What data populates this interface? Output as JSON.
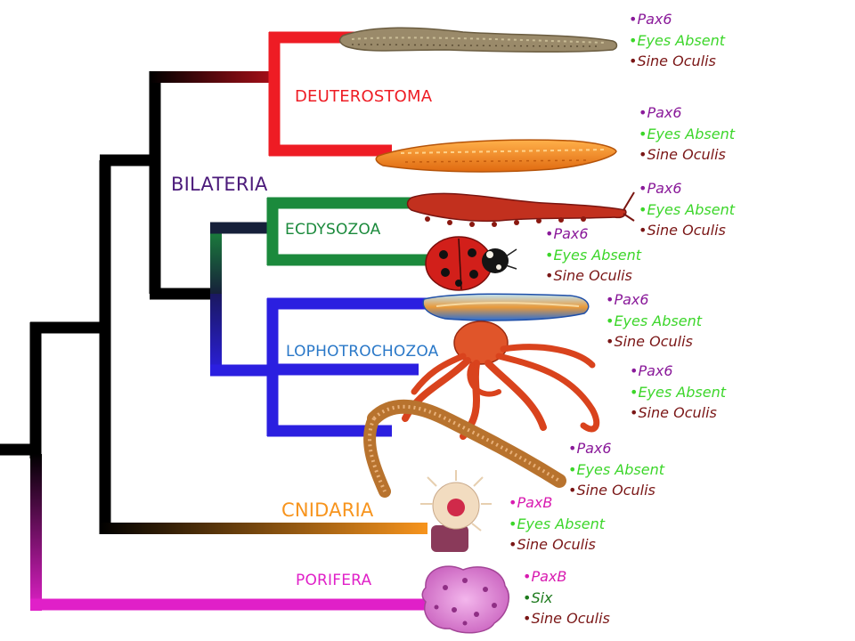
{
  "colors": {
    "deuterostoma": "#ee1c24",
    "ecdysozoa": "#1b8a3c",
    "lophotrochozoa": "#2b1fe0",
    "cnidaria": "#f7941d",
    "porifera": "#e020c8",
    "bilateria": "#4b1a7a",
    "stem": "#000000",
    "gene_pax": "#8a1a9a",
    "gene_pax_b": "#d81bb0",
    "gene_eyes_absent": "#3cd62a",
    "gene_six": "#1c7a1c",
    "gene_sine_oculis": "#7a1616"
  },
  "clades": {
    "deuterostoma": "DEUTEROSTOMA",
    "bilateria": "BILATERIA",
    "ecdysozoa": "ECDYSOZOA",
    "lophotrochozoa": "LOPHOTROCHOZOA",
    "cnidaria": "CNIDARIA",
    "porifera": "PORIFERA"
  },
  "organisms": [
    {
      "icon": "lamprey-image",
      "genes": [
        "Pax6",
        "Eyes Absent",
        "Sine Oculis"
      ]
    },
    {
      "icon": "amphioxus-image",
      "genes": [
        "Pax6",
        "Eyes Absent",
        "Sine Oculis"
      ]
    },
    {
      "icon": "velvet-worm-image",
      "genes": [
        "Pax6",
        "Eyes Absent",
        "Sine Oculis"
      ]
    },
    {
      "icon": "ladybug-image",
      "genes": [
        "Pax6",
        "Eyes Absent",
        "Sine Oculis"
      ]
    },
    {
      "icon": "flatworm-image",
      "genes": [
        "Pax6",
        "Eyes Absent",
        "Sine Oculis"
      ]
    },
    {
      "icon": "octopus-image",
      "genes": [
        "Pax6",
        "Eyes Absent",
        "Sine Oculis"
      ]
    },
    {
      "icon": "bristleworm-image",
      "genes": [
        "Pax6",
        "Eyes Absent",
        "Sine Oculis"
      ]
    },
    {
      "icon": "sea-anemone-image",
      "genes": [
        "PaxB",
        "Eyes Absent",
        "Sine Oculis"
      ]
    },
    {
      "icon": "sponge-image",
      "genes": [
        "PaxB",
        "Six",
        "Sine Oculis"
      ]
    }
  ]
}
